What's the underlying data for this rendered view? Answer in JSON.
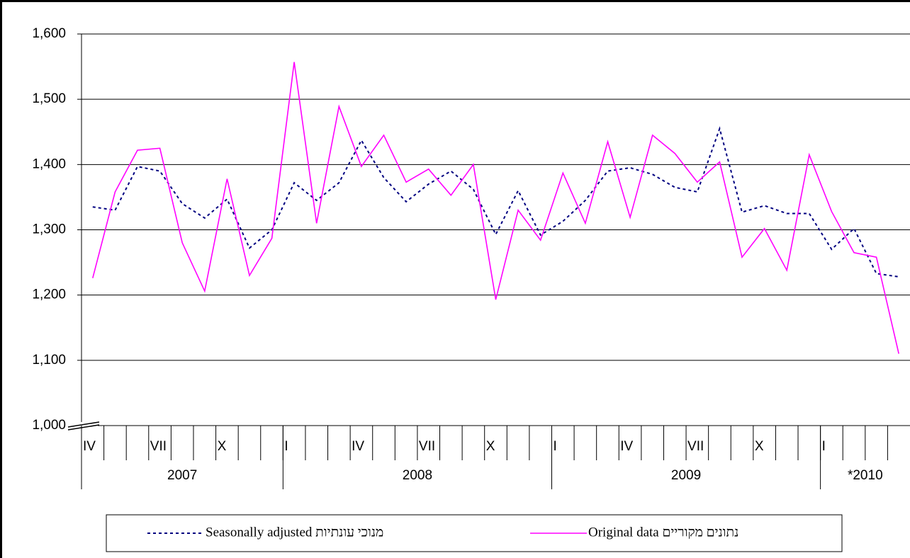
{
  "chart_data": {
    "type": "line",
    "categories": [
      "IV",
      null,
      null,
      "VII",
      null,
      null,
      "X",
      null,
      null,
      "I",
      null,
      null,
      "IV",
      null,
      null,
      "VII",
      null,
      null,
      "X",
      null,
      null,
      "I",
      null,
      null,
      "IV",
      null,
      null,
      "VII",
      null,
      null,
      "X",
      null,
      null,
      "I",
      null,
      null,
      null
    ],
    "year_labels": [
      {
        "label": "2007",
        "span": 9
      },
      {
        "label": "2008",
        "span": 12
      },
      {
        "label": "2009",
        "span": 12
      },
      {
        "label": "*2010",
        "span": 4
      }
    ],
    "series": [
      {
        "name": "Seasonally adjusted מנוכי עונתיות",
        "color": "#000080",
        "dashed": true,
        "values": [
          1335,
          1330,
          1397,
          1390,
          1340,
          1318,
          1347,
          1272,
          1300,
          1372,
          1345,
          1372,
          1437,
          1380,
          1343,
          1370,
          1390,
          1362,
          1293,
          1360,
          1292,
          1313,
          1345,
          1390,
          1395,
          1385,
          1365,
          1358,
          1455,
          1327,
          1337,
          1325,
          1325,
          1270,
          1302,
          1233,
          1228
        ]
      },
      {
        "name": "Original data נתונים מקוריים",
        "color": "#ff00ff",
        "dashed": false,
        "values": [
          1226,
          1358,
          1422,
          1425,
          1280,
          1206,
          1378,
          1230,
          1287,
          1557,
          1310,
          1489,
          1397,
          1445,
          1373,
          1393,
          1353,
          1400,
          1193,
          1330,
          1284,
          1387,
          1310,
          1435,
          1319,
          1445,
          1417,
          1373,
          1404,
          1258,
          1302,
          1238,
          1415,
          1328,
          1265,
          1258,
          1110
        ]
      }
    ],
    "ylim": [
      1000,
      1600
    ],
    "yticks": [
      {
        "value": 1000,
        "label": "1,000"
      },
      {
        "value": 1100,
        "label": "1,100"
      },
      {
        "value": 1200,
        "label": "1,200"
      },
      {
        "value": 1300,
        "label": "1,300"
      },
      {
        "value": 1400,
        "label": "1,400"
      },
      {
        "value": 1500,
        "label": "1,500"
      },
      {
        "value": 1600,
        "label": "1,600"
      }
    ],
    "grid": true
  }
}
